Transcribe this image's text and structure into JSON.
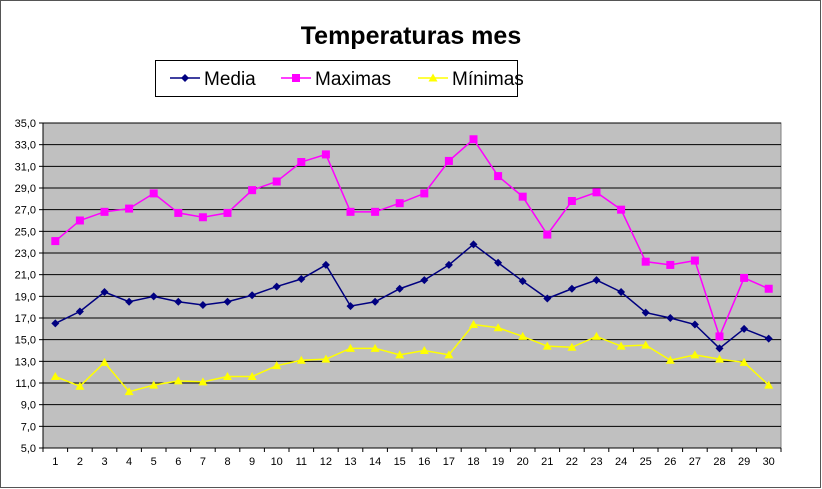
{
  "chart_data": {
    "type": "line",
    "title": "Temperaturas mes",
    "xlabel": "",
    "ylabel": "",
    "ylim": [
      5,
      35
    ],
    "yticks": [
      "5,0",
      "7,0",
      "9,0",
      "11,0",
      "13,0",
      "15,0",
      "17,0",
      "19,0",
      "21,0",
      "23,0",
      "25,0",
      "27,0",
      "29,0",
      "31,0",
      "33,0",
      "35,0"
    ],
    "categories": [
      "1",
      "2",
      "3",
      "4",
      "5",
      "6",
      "7",
      "8",
      "9",
      "10",
      "11",
      "12",
      "13",
      "14",
      "15",
      "16",
      "17",
      "18",
      "19",
      "20",
      "21",
      "22",
      "23",
      "24",
      "25",
      "26",
      "27",
      "28",
      "29",
      "30"
    ],
    "grid": true,
    "legend_position": "top",
    "series": [
      {
        "name": "Media",
        "color": "#000080",
        "marker": "diamond",
        "values": [
          16.5,
          17.6,
          19.4,
          18.5,
          19.0,
          18.5,
          18.2,
          18.5,
          19.1,
          19.9,
          20.6,
          21.9,
          18.1,
          18.5,
          19.7,
          20.5,
          21.9,
          23.8,
          22.1,
          20.4,
          18.8,
          19.7,
          20.5,
          19.4,
          17.5,
          17.0,
          16.4,
          14.2,
          16.0,
          15.1
        ]
      },
      {
        "name": "Maximas",
        "color": "#FF00FF",
        "marker": "square",
        "values": [
          24.1,
          26.0,
          26.8,
          27.1,
          28.5,
          26.7,
          26.3,
          26.7,
          28.8,
          29.6,
          31.4,
          32.1,
          26.8,
          26.8,
          27.6,
          28.5,
          31.5,
          33.5,
          30.1,
          28.2,
          24.7,
          27.8,
          28.6,
          27.0,
          22.2,
          21.9,
          22.3,
          15.3,
          20.7,
          19.7
        ]
      },
      {
        "name": "Mínimas",
        "color": "#FFFF00",
        "marker": "triangle",
        "values": [
          11.6,
          10.7,
          12.9,
          10.2,
          10.8,
          11.2,
          11.1,
          11.6,
          11.6,
          12.6,
          13.1,
          13.2,
          14.2,
          14.2,
          13.6,
          14.0,
          13.6,
          16.4,
          16.1,
          15.3,
          14.4,
          14.3,
          15.3,
          14.4,
          14.5,
          13.1,
          13.6,
          13.2,
          12.9,
          10.8
        ]
      }
    ],
    "plot_background": "#C0C0C0"
  }
}
